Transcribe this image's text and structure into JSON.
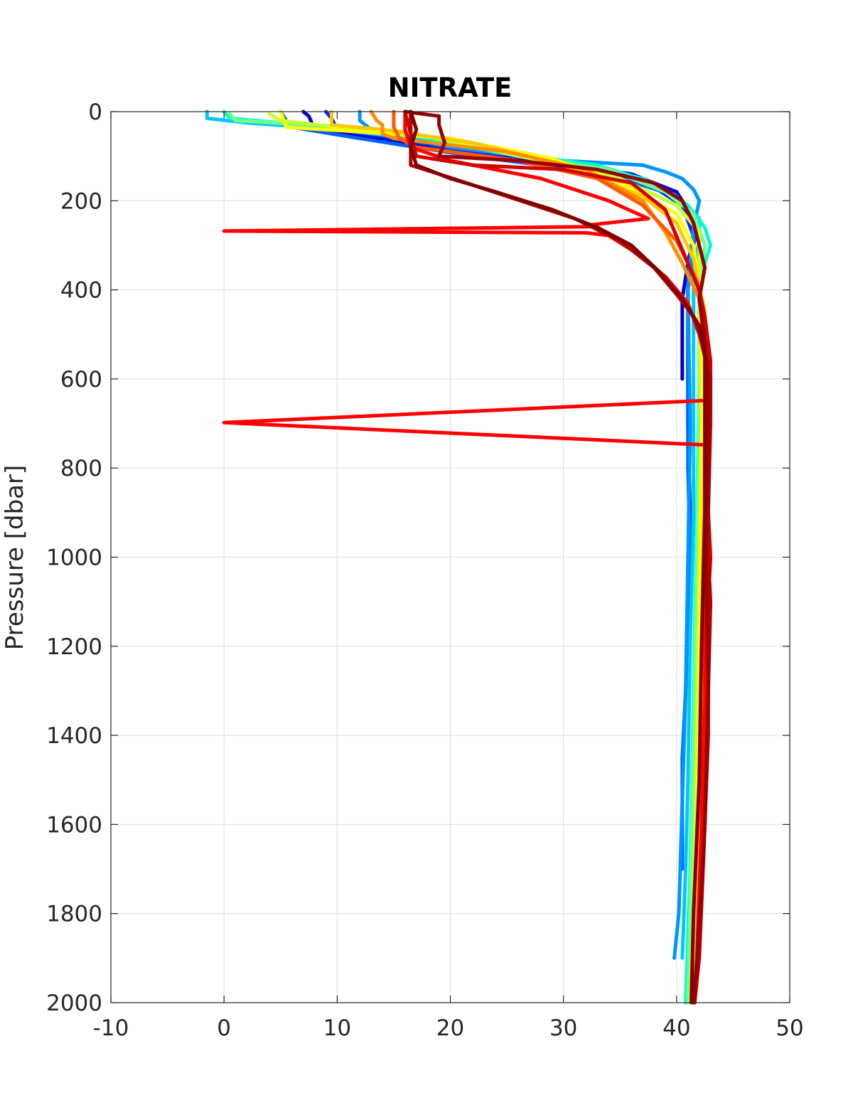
{
  "chart_data": {
    "type": "line",
    "title": "NITRATE",
    "xlabel": "",
    "ylabel": "Pressure [dbar]",
    "xlim": [
      -10,
      50
    ],
    "ylim": [
      0,
      2000
    ],
    "y_reversed": true,
    "grid": true,
    "legend": "none",
    "x_ticks": [
      "-10",
      "0",
      "10",
      "20",
      "30",
      "40",
      "50"
    ],
    "y_ticks": [
      "0",
      "200",
      "400",
      "600",
      "800",
      "1000",
      "1200",
      "1400",
      "1600",
      "1800",
      "2000"
    ],
    "series": [
      {
        "color": "#0000c8",
        "points": [
          [
            7,
            0
          ],
          [
            7.5,
            10
          ],
          [
            8,
            40
          ],
          [
            11,
            50
          ],
          [
            20,
            90
          ],
          [
            28,
            110
          ],
          [
            36,
            140
          ],
          [
            40,
            180
          ],
          [
            41,
            220
          ],
          [
            41.5,
            280
          ],
          [
            41,
            340
          ],
          [
            40.5,
            420
          ],
          [
            40.5,
            520
          ],
          [
            40.5,
            600
          ]
        ]
      },
      {
        "color": "#0028ff",
        "points": [
          [
            9,
            0
          ],
          [
            9.5,
            15
          ],
          [
            10,
            40
          ],
          [
            15,
            60
          ],
          [
            24,
            100
          ],
          [
            32,
            130
          ],
          [
            38,
            170
          ],
          [
            40.5,
            210
          ],
          [
            41.5,
            280
          ],
          [
            41,
            350
          ],
          [
            41,
            500
          ],
          [
            41,
            700
          ],
          [
            41.2,
            900
          ],
          [
            41,
            1100
          ]
        ]
      },
      {
        "color": "#0060ff",
        "points": [
          [
            5,
            0
          ],
          [
            5.5,
            20
          ],
          [
            6,
            35
          ],
          [
            12,
            60
          ],
          [
            22,
            100
          ],
          [
            34,
            140
          ],
          [
            40,
            190
          ],
          [
            42,
            240
          ],
          [
            41.5,
            300
          ],
          [
            41,
            400
          ],
          [
            41,
            600
          ],
          [
            41,
            800
          ],
          [
            41.2,
            1000
          ],
          [
            41,
            1200
          ],
          [
            40.5,
            1450
          ],
          [
            40.5,
            1700
          ]
        ]
      },
      {
        "color": "#0096ff",
        "points": [
          [
            12,
            0
          ],
          [
            12,
            20
          ],
          [
            13,
            40
          ],
          [
            20,
            80
          ],
          [
            30,
            110
          ],
          [
            37,
            120
          ],
          [
            39,
            135
          ],
          [
            40.5,
            150
          ],
          [
            41.5,
            175
          ],
          [
            42,
            200
          ],
          [
            41.5,
            260
          ],
          [
            41,
            400
          ],
          [
            41.2,
            700
          ],
          [
            41,
            1000
          ],
          [
            40.8,
            1300
          ],
          [
            40.5,
            1550
          ],
          [
            40.2,
            1800
          ],
          [
            39.8,
            1900
          ]
        ]
      },
      {
        "color": "#00c8ff",
        "points": [
          [
            -1.5,
            0
          ],
          [
            -1.5,
            15
          ],
          [
            2,
            25
          ],
          [
            10,
            40
          ],
          [
            20,
            70
          ],
          [
            30,
            110
          ],
          [
            37,
            150
          ],
          [
            40,
            190
          ],
          [
            42,
            240
          ],
          [
            42,
            290
          ],
          [
            41.5,
            360
          ],
          [
            41.5,
            600
          ],
          [
            41.5,
            900
          ],
          [
            41.2,
            1200
          ],
          [
            41,
            1500
          ],
          [
            40.8,
            1700
          ],
          [
            40.5,
            1900
          ]
        ]
      },
      {
        "color": "#00ffd0",
        "points": [
          [
            0,
            0
          ],
          [
            0.5,
            15
          ],
          [
            5,
            25
          ],
          [
            14,
            40
          ],
          [
            24,
            90
          ],
          [
            33,
            120
          ],
          [
            38,
            160
          ],
          [
            41,
            210
          ],
          [
            42.5,
            260
          ],
          [
            43,
            300
          ],
          [
            42,
            380
          ],
          [
            42,
            600
          ],
          [
            41.8,
            900
          ],
          [
            41.5,
            1300
          ],
          [
            41.2,
            1700
          ],
          [
            40.8,
            2000
          ]
        ]
      },
      {
        "color": "#70ff8a",
        "points": [
          [
            0.5,
            5
          ],
          [
            1,
            20
          ],
          [
            8,
            30
          ],
          [
            16,
            45
          ],
          [
            26,
            100
          ],
          [
            34,
            130
          ],
          [
            39,
            180
          ],
          [
            41.5,
            230
          ],
          [
            42.5,
            300
          ],
          [
            42,
            400
          ],
          [
            42,
            700
          ],
          [
            41.8,
            1000
          ],
          [
            41.5,
            1400
          ],
          [
            41.2,
            1800
          ],
          [
            41,
            2000
          ]
        ]
      },
      {
        "color": "#c8ff2e",
        "points": [
          [
            4,
            5
          ],
          [
            5,
            20
          ],
          [
            10,
            35
          ],
          [
            18,
            55
          ],
          [
            28,
            110
          ],
          [
            35,
            150
          ],
          [
            40,
            210
          ],
          [
            42,
            270
          ],
          [
            42,
            400
          ],
          [
            42.2,
            700
          ],
          [
            42,
            1000
          ],
          [
            41.8,
            1400
          ],
          [
            41.5,
            1800
          ],
          [
            41.2,
            2000
          ]
        ]
      },
      {
        "color": "#ffff00",
        "points": [
          [
            5,
            0
          ],
          [
            5.5,
            35
          ],
          [
            12,
            45
          ],
          [
            20,
            60
          ],
          [
            29,
            105
          ],
          [
            36,
            170
          ],
          [
            40,
            230
          ],
          [
            41.5,
            300
          ],
          [
            42,
            400
          ],
          [
            42.3,
            600
          ],
          [
            42.2,
            900
          ],
          [
            42,
            1300
          ],
          [
            41.8,
            1700
          ],
          [
            41.5,
            2000
          ]
        ]
      },
      {
        "color": "#ffc800",
        "points": [
          [
            9.5,
            0
          ],
          [
            9.5,
            30
          ],
          [
            14,
            40
          ],
          [
            22,
            70
          ],
          [
            30,
            120
          ],
          [
            37,
            190
          ],
          [
            40,
            250
          ],
          [
            41.5,
            330
          ],
          [
            42.5,
            450
          ],
          [
            42.5,
            700
          ],
          [
            42.3,
            1000
          ],
          [
            42.2,
            1400
          ],
          [
            41.8,
            1800
          ],
          [
            41.5,
            2000
          ]
        ]
      },
      {
        "color": "#ff8c00",
        "points": [
          [
            13,
            0
          ],
          [
            13.5,
            20
          ],
          [
            14,
            30
          ],
          [
            14,
            50
          ],
          [
            15,
            60
          ],
          [
            25,
            90
          ],
          [
            32,
            130
          ],
          [
            37,
            200
          ],
          [
            39,
            270
          ],
          [
            40.5,
            340
          ],
          [
            42,
            420
          ],
          [
            42.8,
            560
          ],
          [
            42.8,
            800
          ],
          [
            42.5,
            1100
          ],
          [
            42.5,
            1300
          ],
          [
            42.2,
            1600
          ],
          [
            41.8,
            1900
          ],
          [
            41.5,
            2000
          ]
        ]
      },
      {
        "color": "#ff5a00",
        "points": [
          [
            15,
            0
          ],
          [
            15,
            35
          ],
          [
            15.5,
            60
          ],
          [
            17,
            80
          ],
          [
            26,
            110
          ],
          [
            33,
            150
          ],
          [
            37,
            210
          ],
          [
            40,
            290
          ],
          [
            41.8,
            380
          ],
          [
            42.5,
            500
          ],
          [
            42.8,
            700
          ],
          [
            42.5,
            1000
          ],
          [
            42.5,
            1300
          ],
          [
            42.2,
            1600
          ],
          [
            41.8,
            1900
          ],
          [
            41.6,
            2000
          ]
        ]
      },
      {
        "color": "#ff0000",
        "points": [
          [
            16,
            0
          ],
          [
            16,
            40
          ],
          [
            16.5,
            80
          ],
          [
            20,
            110
          ],
          [
            28,
            150
          ],
          [
            34,
            200
          ],
          [
            37.5,
            240
          ],
          [
            32,
            255
          ],
          [
            33,
            258
          ],
          [
            0,
            268
          ],
          [
            32,
            272
          ],
          [
            34,
            278
          ],
          [
            36,
            310
          ],
          [
            39,
            370
          ],
          [
            41,
            430
          ],
          [
            42,
            500
          ],
          [
            42.6,
            560
          ],
          [
            42.8,
            648
          ],
          [
            0,
            698
          ],
          [
            42.5,
            748
          ],
          [
            42.5,
            850
          ],
          [
            42.6,
            1000
          ],
          [
            42.5,
            1300
          ],
          [
            42.2,
            1600
          ],
          [
            41.8,
            1900
          ],
          [
            41.6,
            2000
          ]
        ]
      },
      {
        "color": "#d20000",
        "points": [
          [
            16,
            0
          ],
          [
            16.5,
            50
          ],
          [
            17,
            100
          ],
          [
            22,
            120
          ],
          [
            30,
            130
          ],
          [
            36,
            160
          ],
          [
            39,
            220
          ],
          [
            40,
            280
          ],
          [
            41,
            340
          ],
          [
            42,
            400
          ],
          [
            42.5,
            460
          ],
          [
            43,
            560
          ],
          [
            43,
            700
          ],
          [
            42.8,
            900
          ],
          [
            43,
            1000
          ],
          [
            42.8,
            1100
          ],
          [
            42.8,
            1400
          ],
          [
            42.5,
            1600
          ],
          [
            42,
            1900
          ],
          [
            41.6,
            2000
          ]
        ]
      },
      {
        "color": "#b40000",
        "points": [
          [
            16.5,
            0
          ],
          [
            16.5,
            60
          ],
          [
            16.5,
            120
          ],
          [
            19,
            140
          ],
          [
            25,
            190
          ],
          [
            31,
            240
          ],
          [
            35,
            290
          ],
          [
            38,
            350
          ],
          [
            40,
            410
          ],
          [
            41.5,
            460
          ],
          [
            42.5,
            530
          ],
          [
            43,
            600
          ],
          [
            42.8,
            800
          ],
          [
            42.8,
            1000
          ],
          [
            43,
            1100
          ],
          [
            42.8,
            1300
          ],
          [
            42.5,
            1600
          ],
          [
            42,
            1900
          ],
          [
            41.5,
            2000
          ]
        ]
      },
      {
        "color": "#960000",
        "points": [
          [
            16,
            0
          ],
          [
            19,
            10
          ],
          [
            19,
            30
          ],
          [
            19.5,
            70
          ],
          [
            19,
            100
          ],
          [
            26,
            110
          ],
          [
            33,
            130
          ],
          [
            38,
            160
          ],
          [
            40.5,
            200
          ],
          [
            41.5,
            250
          ],
          [
            42,
            300
          ],
          [
            42.5,
            350
          ],
          [
            42,
            420
          ],
          [
            42.5,
            520
          ],
          [
            42.8,
            600
          ],
          [
            42.8,
            800
          ],
          [
            42.6,
            1000
          ],
          [
            42.8,
            1300
          ],
          [
            42.5,
            1600
          ],
          [
            41.8,
            1900
          ],
          [
            41.5,
            2000
          ]
        ]
      },
      {
        "color": "#800000",
        "points": [
          [
            16.5,
            0
          ],
          [
            17,
            40
          ],
          [
            16.5,
            80
          ],
          [
            17,
            120
          ],
          [
            20,
            150
          ],
          [
            24,
            180
          ],
          [
            29,
            220
          ],
          [
            33,
            260
          ],
          [
            36,
            300
          ],
          [
            38.5,
            360
          ],
          [
            40.5,
            420
          ],
          [
            42,
            480
          ],
          [
            42.5,
            550
          ],
          [
            42.5,
            700
          ],
          [
            42.5,
            900
          ],
          [
            42.2,
            1200
          ],
          [
            42,
            1500
          ],
          [
            41.5,
            1800
          ],
          [
            41.3,
            2000
          ]
        ]
      }
    ]
  }
}
